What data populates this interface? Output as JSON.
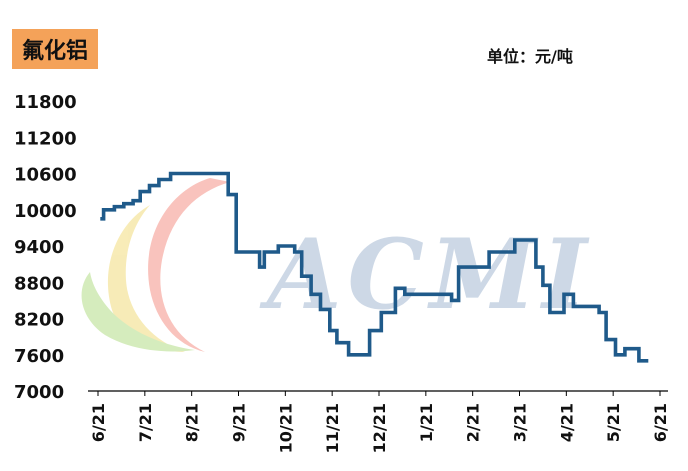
{
  "title": "氟化铝",
  "unit": "单位：元/吨",
  "watermark": "ACMI",
  "colors": {
    "line": "#1f5a8a",
    "title_bg": "#f4a259",
    "watermark": "#c5d2e2",
    "axis": "#000000"
  },
  "chart_data": {
    "type": "line",
    "title": "",
    "xlabel": "",
    "ylabel": "",
    "ylim": [
      7000,
      11800
    ],
    "yticks": [
      11800,
      11200,
      10600,
      10000,
      9400,
      8800,
      8200,
      7600,
      7000
    ],
    "xlim": [
      0,
      12
    ],
    "xticks": [
      {
        "label": "6/21",
        "x": 0
      },
      {
        "label": "7/21",
        "x": 1
      },
      {
        "label": "8/21",
        "x": 2
      },
      {
        "label": "9/21",
        "x": 3
      },
      {
        "label": "10/21",
        "x": 4
      },
      {
        "label": "11/21",
        "x": 5
      },
      {
        "label": "12/21",
        "x": 6
      },
      {
        "label": "1/21",
        "x": 7
      },
      {
        "label": "2/21",
        "x": 8
      },
      {
        "label": "3/21",
        "x": 9
      },
      {
        "label": "4/21",
        "x": 10
      },
      {
        "label": "5/21",
        "x": 11
      },
      {
        "label": "6/21",
        "x": 12
      }
    ],
    "grid": false,
    "step": true,
    "series": [
      {
        "name": "",
        "points": [
          [
            0.05,
            9850
          ],
          [
            0.12,
            10000
          ],
          [
            0.35,
            10050
          ],
          [
            0.55,
            10100
          ],
          [
            0.75,
            10150
          ],
          [
            0.9,
            10300
          ],
          [
            1.1,
            10400
          ],
          [
            1.3,
            10500
          ],
          [
            1.55,
            10600
          ],
          [
            1.65,
            10600
          ],
          [
            2.35,
            10600
          ],
          [
            2.75,
            10600
          ],
          [
            2.78,
            10250
          ],
          [
            2.9,
            10250
          ],
          [
            2.95,
            9300
          ],
          [
            3.35,
            9300
          ],
          [
            3.45,
            9050
          ],
          [
            3.55,
            9300
          ],
          [
            3.85,
            9400
          ],
          [
            4.0,
            9400
          ],
          [
            4.2,
            9300
          ],
          [
            4.35,
            8900
          ],
          [
            4.55,
            8600
          ],
          [
            4.75,
            8350
          ],
          [
            4.95,
            8000
          ],
          [
            5.1,
            7800
          ],
          [
            5.35,
            7600
          ],
          [
            5.75,
            7600
          ],
          [
            5.8,
            8000
          ],
          [
            5.95,
            8000
          ],
          [
            6.05,
            8300
          ],
          [
            6.3,
            8300
          ],
          [
            6.35,
            8700
          ],
          [
            6.55,
            8600
          ],
          [
            6.85,
            8600
          ],
          [
            7.4,
            8600
          ],
          [
            7.55,
            8500
          ],
          [
            7.7,
            9050
          ],
          [
            8.2,
            9050
          ],
          [
            8.35,
            9300
          ],
          [
            8.7,
            9300
          ],
          [
            8.9,
            9500
          ],
          [
            9.3,
            9500
          ],
          [
            9.35,
            9050
          ],
          [
            9.5,
            8750
          ],
          [
            9.65,
            8300
          ],
          [
            9.85,
            8300
          ],
          [
            9.95,
            8600
          ],
          [
            10.15,
            8400
          ],
          [
            10.45,
            8400
          ],
          [
            10.7,
            8300
          ],
          [
            10.85,
            7850
          ],
          [
            11.05,
            7600
          ],
          [
            11.2,
            7600
          ],
          [
            11.25,
            7700
          ],
          [
            11.45,
            7700
          ],
          [
            11.55,
            7500
          ],
          [
            11.75,
            7500
          ]
        ]
      }
    ]
  }
}
